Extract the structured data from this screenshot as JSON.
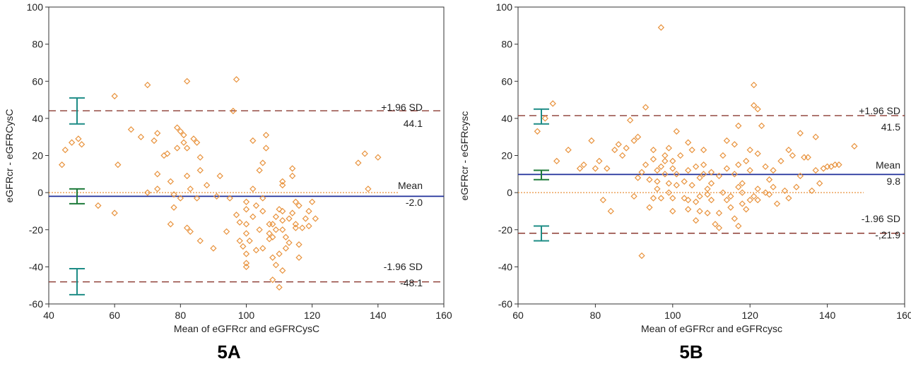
{
  "chart_data": [
    {
      "type": "scatter",
      "panel_label": "5A",
      "xlabel": "Mean of eGFRcr and eGFRCysC",
      "ylabel": "eGFRcr - eGFRCysC",
      "xlim": [
        40,
        160
      ],
      "ylim": [
        -60,
        100
      ],
      "xticks": [
        40,
        60,
        80,
        100,
        120,
        140,
        160
      ],
      "yticks": [
        -60,
        -40,
        -20,
        0,
        20,
        40,
        60,
        80,
        100
      ],
      "grid": false,
      "upper_label": "+1.96 SD",
      "upper_value": "44.1",
      "mean_label": "Mean",
      "mean_value": "-2.0",
      "lower_label": "-1.96 SD",
      "lower_value": "-48.1",
      "upper_loa": 44.1,
      "mean": -2.0,
      "lower_loa": -48.1,
      "ci_upper": [
        37,
        51
      ],
      "ci_mean": [
        -6,
        2
      ],
      "ci_lower": [
        -55,
        -41
      ],
      "zero_line": 0,
      "colors": {
        "points": "#e8923c",
        "mean_line": "#1f2f9a",
        "loa_line": "#8b3a30",
        "zero_line": "#e8923c",
        "ci": "#1d8c86",
        "ci_mean": "#1d7a3a"
      },
      "points": [
        [
          44,
          15
        ],
        [
          45,
          23
        ],
        [
          47,
          27
        ],
        [
          49,
          29
        ],
        [
          50,
          26
        ],
        [
          55,
          -7
        ],
        [
          60,
          52
        ],
        [
          61,
          15
        ],
        [
          60,
          -11
        ],
        [
          65,
          34
        ],
        [
          68,
          30
        ],
        [
          70,
          58
        ],
        [
          70,
          0
        ],
        [
          72,
          28
        ],
        [
          73,
          2
        ],
        [
          73,
          10
        ],
        [
          73,
          32
        ],
        [
          75,
          20
        ],
        [
          76,
          21
        ],
        [
          77,
          6
        ],
        [
          77,
          -17
        ],
        [
          78,
          -1
        ],
        [
          78,
          -8
        ],
        [
          79,
          24
        ],
        [
          79,
          35
        ],
        [
          80,
          33
        ],
        [
          80,
          -3
        ],
        [
          81,
          31
        ],
        [
          81,
          27
        ],
        [
          82,
          60
        ],
        [
          82,
          -19
        ],
        [
          82,
          24
        ],
        [
          82,
          9
        ],
        [
          83,
          -21
        ],
        [
          83,
          2
        ],
        [
          84,
          29
        ],
        [
          85,
          27
        ],
        [
          85,
          -3
        ],
        [
          86,
          12
        ],
        [
          86,
          19
        ],
        [
          86,
          -26
        ],
        [
          88,
          4
        ],
        [
          90,
          -30
        ],
        [
          91,
          -2
        ],
        [
          92,
          9
        ],
        [
          94,
          -21
        ],
        [
          95,
          -3
        ],
        [
          96,
          44
        ],
        [
          97,
          61
        ],
        [
          97,
          -12
        ],
        [
          98,
          -16
        ],
        [
          98,
          -26
        ],
        [
          99,
          -29
        ],
        [
          100,
          -5
        ],
        [
          100,
          -9
        ],
        [
          100,
          -17
        ],
        [
          100,
          -22
        ],
        [
          100,
          -33
        ],
        [
          100,
          -38
        ],
        [
          100,
          -40
        ],
        [
          101,
          -26
        ],
        [
          102,
          28
        ],
        [
          102,
          2
        ],
        [
          102,
          -13
        ],
        [
          103,
          -7
        ],
        [
          103,
          -31
        ],
        [
          104,
          12
        ],
        [
          104,
          -20
        ],
        [
          105,
          -3
        ],
        [
          105,
          -10
        ],
        [
          105,
          -30
        ],
        [
          105,
          16
        ],
        [
          106,
          31
        ],
        [
          106,
          24
        ],
        [
          107,
          -17
        ],
        [
          107,
          -22
        ],
        [
          107,
          -25
        ],
        [
          108,
          -17
        ],
        [
          108,
          -24
        ],
        [
          108,
          -35
        ],
        [
          108,
          -47
        ],
        [
          109,
          -13
        ],
        [
          109,
          -20
        ],
        [
          109,
          -39
        ],
        [
          110,
          -33
        ],
        [
          110,
          -51
        ],
        [
          110,
          -9
        ],
        [
          111,
          -10
        ],
        [
          111,
          -15
        ],
        [
          111,
          -20
        ],
        [
          111,
          -42
        ],
        [
          111,
          4
        ],
        [
          111,
          6
        ],
        [
          112,
          -24
        ],
        [
          112,
          -30
        ],
        [
          113,
          -14
        ],
        [
          113,
          -27
        ],
        [
          114,
          13
        ],
        [
          114,
          9
        ],
        [
          114,
          -11
        ],
        [
          115,
          -5
        ],
        [
          115,
          -17
        ],
        [
          115,
          -19
        ],
        [
          116,
          -7
        ],
        [
          116,
          -28
        ],
        [
          116,
          -35
        ],
        [
          117,
          -19
        ],
        [
          118,
          -14
        ],
        [
          119,
          -10
        ],
        [
          119,
          -18
        ],
        [
          120,
          -5
        ],
        [
          121,
          -14
        ],
        [
          134,
          16
        ],
        [
          136,
          21
        ],
        [
          137,
          2
        ],
        [
          140,
          19
        ]
      ]
    },
    {
      "type": "scatter",
      "panel_label": "5B",
      "xlabel": "Mean of eGFRcr and eGFRcysc",
      "ylabel": "eGFRcr - eGFRcysc",
      "xlim": [
        60,
        160
      ],
      "ylim": [
        -60,
        100
      ],
      "xticks": [
        60,
        80,
        100,
        120,
        140,
        160
      ],
      "yticks": [
        -60,
        -40,
        -20,
        0,
        20,
        40,
        60,
        80,
        100
      ],
      "grid": false,
      "upper_label": "+1.96 SD",
      "upper_value": "41.5",
      "mean_label": "Mean",
      "mean_value": "9.8",
      "lower_label": "-1.96 SD",
      "lower_value": "-,21.9",
      "upper_loa": 41.5,
      "mean": 9.8,
      "lower_loa": -21.9,
      "ci_upper": [
        37,
        45
      ],
      "ci_mean": [
        7,
        12
      ],
      "ci_lower": [
        -26,
        -18
      ],
      "zero_line": 0,
      "colors": {
        "points": "#e8923c",
        "mean_line": "#1f2f9a",
        "loa_line": "#8b3a30",
        "zero_line": "#e8923c",
        "ci": "#1d8c86",
        "ci_mean": "#1d7a3a"
      },
      "points": [
        [
          65,
          33
        ],
        [
          67,
          40
        ],
        [
          69,
          48
        ],
        [
          70,
          17
        ],
        [
          73,
          23
        ],
        [
          76,
          13
        ],
        [
          77,
          15
        ],
        [
          79,
          28
        ],
        [
          80,
          13
        ],
        [
          81,
          17
        ],
        [
          82,
          -4
        ],
        [
          83,
          13
        ],
        [
          84,
          -10
        ],
        [
          85,
          23
        ],
        [
          86,
          26
        ],
        [
          87,
          20
        ],
        [
          88,
          24
        ],
        [
          89,
          39
        ],
        [
          90,
          28
        ],
        [
          90,
          -2
        ],
        [
          91,
          8
        ],
        [
          91,
          30
        ],
        [
          92,
          -34
        ],
        [
          92,
          11
        ],
        [
          93,
          46
        ],
        [
          93,
          15
        ],
        [
          94,
          7
        ],
        [
          94,
          -8
        ],
        [
          95,
          23
        ],
        [
          95,
          18
        ],
        [
          95,
          -3
        ],
        [
          96,
          12
        ],
        [
          96,
          6
        ],
        [
          96,
          2
        ],
        [
          97,
          89
        ],
        [
          97,
          -3
        ],
        [
          97,
          14
        ],
        [
          98,
          20
        ],
        [
          98,
          17
        ],
        [
          98,
          10
        ],
        [
          99,
          5
        ],
        [
          99,
          0
        ],
        [
          99,
          24
        ],
        [
          100,
          13
        ],
        [
          100,
          17
        ],
        [
          100,
          -3
        ],
        [
          100,
          -10
        ],
        [
          101,
          4
        ],
        [
          101,
          33
        ],
        [
          101,
          10
        ],
        [
          102,
          20
        ],
        [
          103,
          -3
        ],
        [
          103,
          6
        ],
        [
          104,
          27
        ],
        [
          104,
          12
        ],
        [
          104,
          -4
        ],
        [
          104,
          -9
        ],
        [
          105,
          23
        ],
        [
          105,
          4
        ],
        [
          106,
          -5
        ],
        [
          106,
          -15
        ],
        [
          106,
          14
        ],
        [
          107,
          -2
        ],
        [
          107,
          8
        ],
        [
          107,
          -10
        ],
        [
          108,
          23
        ],
        [
          108,
          15
        ],
        [
          108,
          10
        ],
        [
          109,
          -1
        ],
        [
          109,
          -11
        ],
        [
          109,
          2
        ],
        [
          110,
          5
        ],
        [
          110,
          11
        ],
        [
          110,
          -4
        ],
        [
          111,
          -17
        ],
        [
          112,
          -19
        ],
        [
          112,
          -11
        ],
        [
          112,
          9
        ],
        [
          113,
          0
        ],
        [
          113,
          20
        ],
        [
          114,
          -4
        ],
        [
          114,
          13
        ],
        [
          114,
          28
        ],
        [
          115,
          -2
        ],
        [
          115,
          -8
        ],
        [
          116,
          10
        ],
        [
          116,
          -14
        ],
        [
          116,
          26
        ],
        [
          117,
          -18
        ],
        [
          117,
          3
        ],
        [
          117,
          15
        ],
        [
          117,
          36
        ],
        [
          118,
          -6
        ],
        [
          118,
          5
        ],
        [
          118,
          0
        ],
        [
          119,
          -9
        ],
        [
          119,
          17
        ],
        [
          120,
          -4
        ],
        [
          120,
          23
        ],
        [
          120,
          12
        ],
        [
          121,
          58
        ],
        [
          121,
          -2
        ],
        [
          121,
          47
        ],
        [
          122,
          21
        ],
        [
          122,
          -4
        ],
        [
          122,
          45
        ],
        [
          122,
          2
        ],
        [
          123,
          36
        ],
        [
          124,
          0
        ],
        [
          124,
          14
        ],
        [
          125,
          -1
        ],
        [
          125,
          7
        ],
        [
          126,
          3
        ],
        [
          126,
          12
        ],
        [
          127,
          -6
        ],
        [
          128,
          17
        ],
        [
          129,
          1
        ],
        [
          130,
          23
        ],
        [
          130,
          -3
        ],
        [
          131,
          20
        ],
        [
          132,
          3
        ],
        [
          133,
          9
        ],
        [
          133,
          32
        ],
        [
          134,
          19
        ],
        [
          135,
          19
        ],
        [
          136,
          1
        ],
        [
          137,
          30
        ],
        [
          137,
          12
        ],
        [
          138,
          5
        ],
        [
          139,
          13
        ],
        [
          140,
          14
        ],
        [
          141,
          14
        ],
        [
          142,
          15
        ],
        [
          143,
          15
        ],
        [
          147,
          25
        ]
      ]
    }
  ]
}
